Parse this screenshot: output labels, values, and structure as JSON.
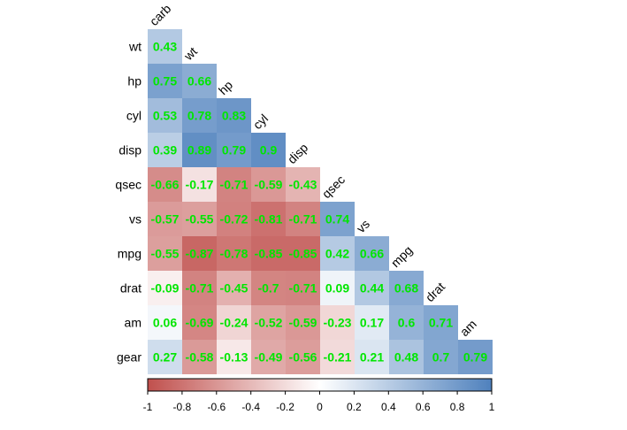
{
  "chart_data": {
    "type": "heatmap",
    "title": "",
    "variables_rows": [
      "wt",
      "hp",
      "cyl",
      "disp",
      "qsec",
      "vs",
      "mpg",
      "drat",
      "am",
      "gear"
    ],
    "variables_cols": [
      "carb",
      "wt",
      "hp",
      "cyl",
      "disp",
      "qsec",
      "vs",
      "mpg",
      "drat",
      "am"
    ],
    "matrix": [
      [
        0.43
      ],
      [
        0.75,
        0.66
      ],
      [
        0.53,
        0.78,
        0.83
      ],
      [
        0.39,
        0.89,
        0.79,
        0.9
      ],
      [
        -0.66,
        -0.17,
        -0.71,
        -0.59,
        -0.43
      ],
      [
        -0.57,
        -0.55,
        -0.72,
        -0.81,
        -0.71,
        0.74
      ],
      [
        -0.55,
        -0.87,
        -0.78,
        -0.85,
        -0.85,
        0.42,
        0.66
      ],
      [
        -0.09,
        -0.71,
        -0.45,
        -0.7,
        -0.71,
        0.09,
        0.44,
        0.68
      ],
      [
        0.06,
        -0.69,
        -0.24,
        -0.52,
        -0.59,
        -0.23,
        0.17,
        0.6,
        0.71
      ],
      [
        0.27,
        -0.58,
        -0.13,
        -0.49,
        -0.56,
        -0.21,
        0.21,
        0.48,
        0.7,
        0.79
      ]
    ],
    "value_labels": [
      [
        "0.43"
      ],
      [
        "0.75",
        "0.66"
      ],
      [
        "0.53",
        "0.78",
        "0.83"
      ],
      [
        "0.39",
        "0.89",
        "0.79",
        "0.9"
      ],
      [
        "-0.66",
        "-0.17",
        "-0.71",
        "-0.59",
        "-0.43"
      ],
      [
        "-0.57",
        "-0.55",
        "-0.72",
        "-0.81",
        "-0.71",
        "0.74"
      ],
      [
        "-0.55",
        "-0.87",
        "-0.78",
        "-0.85",
        "-0.85",
        "0.42",
        "0.66"
      ],
      [
        "-0.09",
        "-0.71",
        "-0.45",
        "-0.7",
        "-0.71",
        "0.09",
        "0.44",
        "0.68"
      ],
      [
        "0.06",
        "-0.69",
        "-0.24",
        "-0.52",
        "-0.59",
        "-0.23",
        "0.17",
        "0.6",
        "0.71"
      ],
      [
        "0.27",
        "-0.58",
        "-0.13",
        "-0.49",
        "-0.56",
        "-0.21",
        "0.21",
        "0.48",
        "0.7",
        "0.79"
      ]
    ],
    "colorbar": {
      "range": [
        -1,
        1
      ],
      "tick_labels": [
        "-1",
        "-0.8",
        "-0.6",
        "-0.4",
        "-0.2",
        "0",
        "0.2",
        "0.4",
        "0.6",
        "0.8",
        "1"
      ],
      "colors": {
        "low": "#c0504d",
        "mid": "#ffffff",
        "high": "#4f81bd"
      }
    },
    "value_label_color": "#00e600",
    "legend_placement": "bottom"
  }
}
